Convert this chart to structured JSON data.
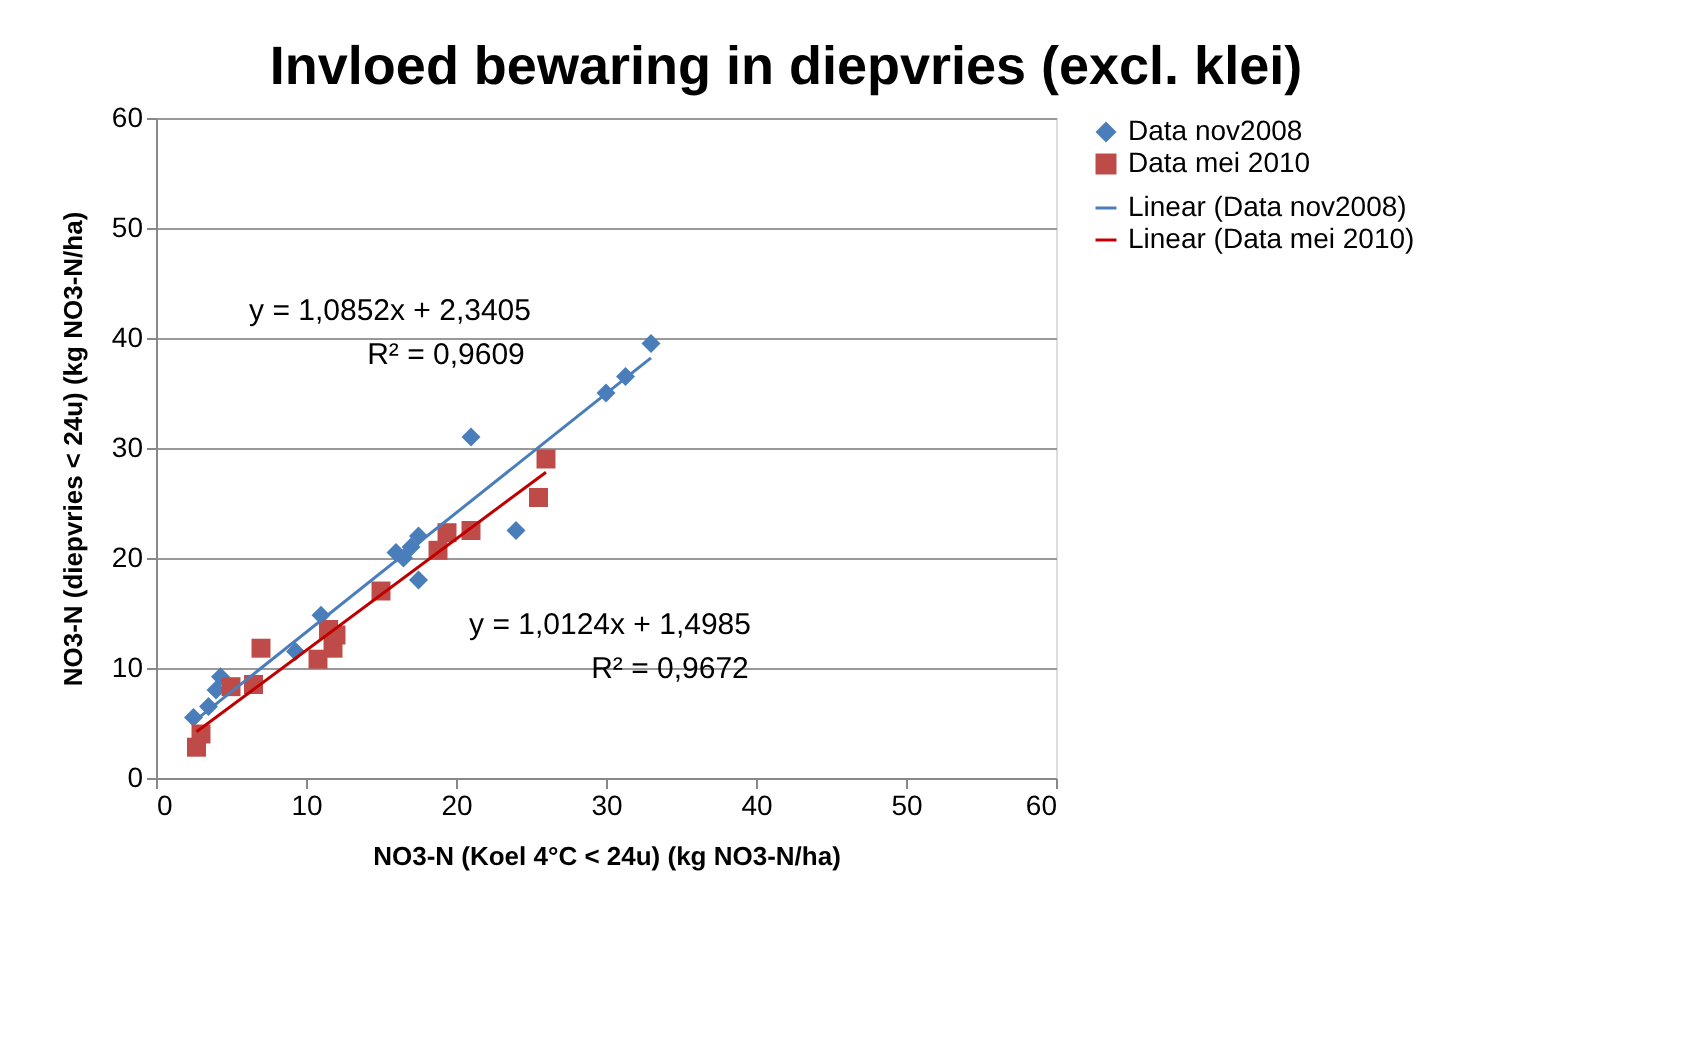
{
  "chart_data": {
    "type": "scatter",
    "title": "Invloed bewaring in diepvries (excl. klei)",
    "xlabel": "NO3-N (Koel 4°C < 24u) (kg NO3-N/ha)",
    "ylabel": "NO3-N (diepvries < 24u) (kg NO3-N/ha)",
    "xlim": [
      0,
      60
    ],
    "ylim": [
      0,
      60
    ],
    "xticks": [
      0,
      10,
      20,
      30,
      40,
      50,
      60
    ],
    "yticks": [
      0,
      10,
      20,
      30,
      40,
      50,
      60
    ],
    "grid": "y",
    "legend": "right",
    "series": [
      {
        "name": "Data nov2008",
        "marker": "diamond",
        "color": "#4a7ebb",
        "x": [
          2.5,
          3.5,
          4,
          4.3,
          9.3,
          11,
          16,
          16.5,
          17,
          17.5,
          17.5,
          21,
          24,
          30,
          31.3,
          33
        ],
        "values": [
          5.5,
          6.5,
          8,
          9.2,
          11.5,
          14.8,
          20.5,
          20,
          21,
          22,
          18,
          31,
          22.5,
          35,
          36.5,
          39.5
        ]
      },
      {
        "name": "Data mei 2010",
        "marker": "square",
        "color": "#be4b48",
        "x": [
          2.7,
          3,
          5,
          7,
          6.5,
          11.5,
          10.8,
          11.8,
          12,
          15,
          18.8,
          19.4,
          21,
          25.5,
          26
        ],
        "values": [
          2.8,
          4,
          8.3,
          11.8,
          8.5,
          13.5,
          10.8,
          11.8,
          13,
          17,
          20.7,
          22.3,
          22.5,
          25.5,
          29
        ]
      },
      {
        "name": "Linear (Data nov2008)",
        "type": "line",
        "line_style": "solid",
        "color": "#4a7ebb",
        "x": [
          2.5,
          33
        ],
        "values": [
          5.1,
          38.2
        ]
      },
      {
        "name": "Linear (Data mei 2010)",
        "type": "line",
        "line_style": "solid",
        "color": "#c00000",
        "x": [
          2.7,
          26
        ],
        "values": [
          4.2,
          27.8
        ]
      }
    ],
    "annotations": [
      "y = 1,0852x + 2,3405",
      "R² = 0,9609",
      "y = 1,0124x + 1,4985",
      "R² = 0,9672"
    ]
  }
}
